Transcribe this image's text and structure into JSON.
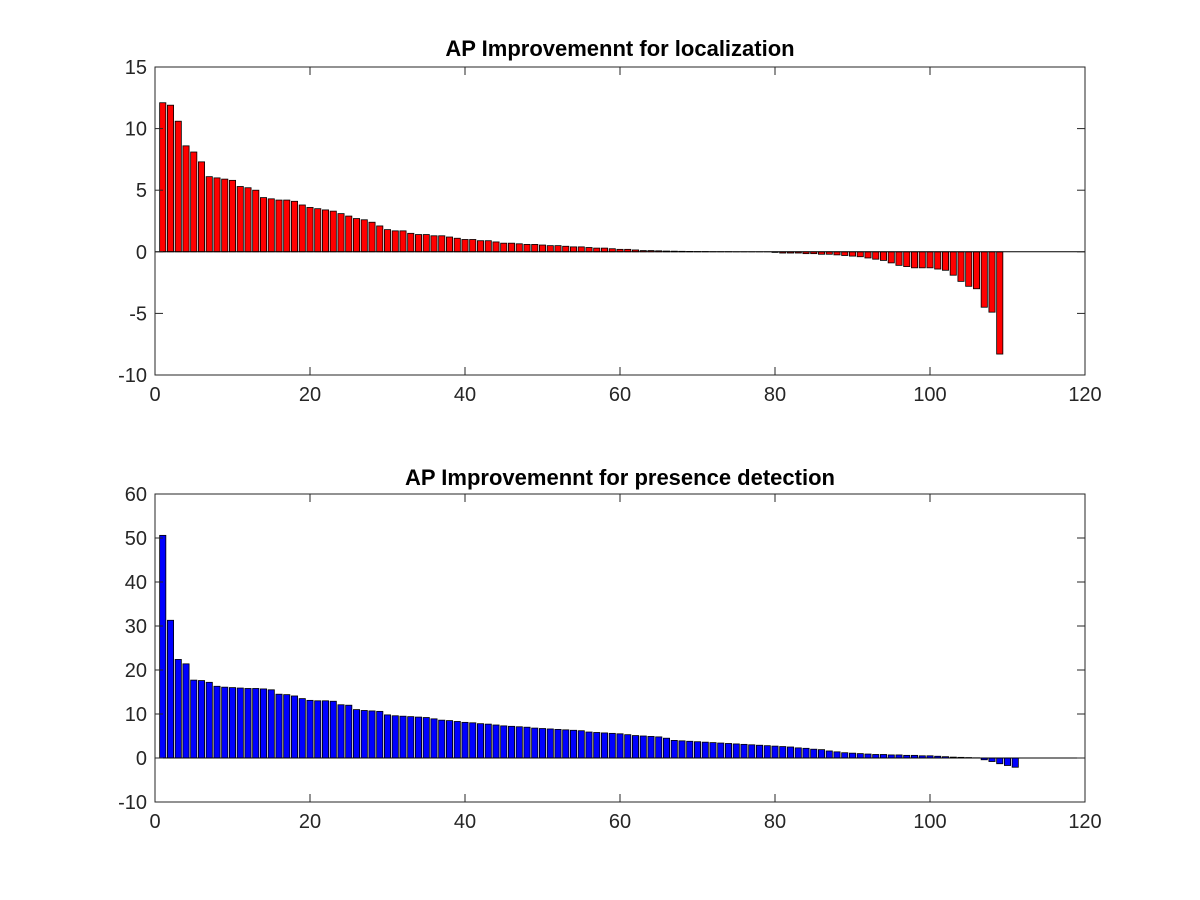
{
  "chart_data": [
    {
      "type": "bar",
      "title": "AP Improvemennt for localization",
      "xlabel": "",
      "ylabel": "",
      "xlim": [
        0,
        120
      ],
      "ylim": [
        -10,
        15
      ],
      "xticks": [
        0,
        20,
        40,
        60,
        80,
        100,
        120
      ],
      "yticks": [
        -10,
        -5,
        0,
        5,
        10,
        15
      ],
      "grid": false,
      "bar_color": "#ff0000",
      "x_start": 1,
      "values": [
        12.1,
        11.9,
        10.6,
        8.6,
        8.1,
        7.3,
        6.1,
        6.0,
        5.9,
        5.8,
        5.3,
        5.2,
        5.0,
        4.4,
        4.3,
        4.2,
        4.2,
        4.1,
        3.8,
        3.6,
        3.5,
        3.4,
        3.3,
        3.1,
        2.9,
        2.7,
        2.6,
        2.4,
        2.1,
        1.8,
        1.7,
        1.7,
        1.5,
        1.4,
        1.4,
        1.3,
        1.3,
        1.2,
        1.1,
        1.0,
        1.0,
        0.9,
        0.9,
        0.8,
        0.7,
        0.7,
        0.65,
        0.6,
        0.6,
        0.55,
        0.5,
        0.5,
        0.45,
        0.4,
        0.4,
        0.35,
        0.3,
        0.3,
        0.25,
        0.2,
        0.2,
        0.15,
        0.1,
        0.1,
        0.08,
        0.06,
        0.05,
        0.04,
        0.03,
        0.02,
        0.02,
        0.01,
        0.01,
        0.01,
        0.0,
        0.0,
        0.0,
        0.0,
        0.0,
        -0.05,
        -0.1,
        -0.1,
        -0.1,
        -0.15,
        -0.15,
        -0.2,
        -0.2,
        -0.25,
        -0.3,
        -0.35,
        -0.4,
        -0.5,
        -0.6,
        -0.7,
        -0.9,
        -1.1,
        -1.2,
        -1.3,
        -1.3,
        -1.3,
        -1.4,
        -1.5,
        -1.9,
        -2.4,
        -2.8,
        -3.0,
        -4.5,
        -4.9,
        -8.3
      ]
    },
    {
      "type": "bar",
      "title": "AP Improvemennt for presence detection",
      "xlabel": "",
      "ylabel": "",
      "xlim": [
        0,
        120
      ],
      "ylim": [
        -10,
        60
      ],
      "xticks": [
        0,
        20,
        40,
        60,
        80,
        100,
        120
      ],
      "yticks": [
        -10,
        0,
        10,
        20,
        30,
        40,
        50,
        60
      ],
      "grid": false,
      "bar_color": "#0000ff",
      "x_start": 1,
      "values": [
        50.6,
        31.3,
        22.4,
        21.4,
        17.7,
        17.6,
        17.2,
        16.3,
        16.1,
        16.0,
        15.9,
        15.8,
        15.8,
        15.7,
        15.5,
        14.5,
        14.4,
        14.1,
        13.5,
        13.1,
        13.0,
        13.0,
        12.9,
        12.1,
        12.0,
        11.0,
        10.8,
        10.7,
        10.6,
        9.8,
        9.6,
        9.5,
        9.4,
        9.3,
        9.2,
        8.9,
        8.6,
        8.5,
        8.3,
        8.1,
        8.0,
        7.8,
        7.7,
        7.5,
        7.3,
        7.2,
        7.1,
        7.0,
        6.8,
        6.7,
        6.6,
        6.5,
        6.4,
        6.3,
        6.2,
        5.9,
        5.8,
        5.7,
        5.6,
        5.5,
        5.3,
        5.1,
        5.0,
        4.9,
        4.8,
        4.5,
        4.0,
        3.9,
        3.8,
        3.7,
        3.6,
        3.5,
        3.4,
        3.3,
        3.2,
        3.1,
        3.0,
        2.9,
        2.8,
        2.7,
        2.6,
        2.5,
        2.3,
        2.2,
        2.0,
        1.9,
        1.6,
        1.4,
        1.2,
        1.1,
        1.0,
        0.9,
        0.8,
        0.8,
        0.7,
        0.7,
        0.6,
        0.6,
        0.5,
        0.5,
        0.4,
        0.3,
        0.2,
        0.15,
        0.1,
        0.05,
        -0.4,
        -0.8,
        -1.3,
        -1.7,
        -2.1
      ]
    }
  ]
}
